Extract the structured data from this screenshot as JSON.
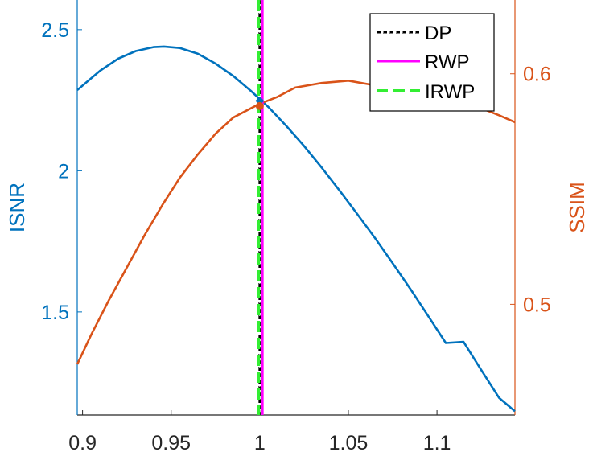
{
  "chart_data": {
    "type": "line",
    "xlim": [
      0.897,
      1.144
    ],
    "x_ticks": [
      0.9,
      0.95,
      1,
      1.05,
      1.1
    ],
    "x_tick_labels": [
      "0.9",
      "0.95",
      "1",
      "1.05",
      "1.1"
    ],
    "y_left": {
      "label": "ISNR",
      "ylim": [
        1.135,
        2.605
      ],
      "ticks": [
        1.5,
        2,
        2.5
      ],
      "tick_labels": [
        "1.5",
        "2",
        "2.5"
      ],
      "color": "#0072BD"
    },
    "y_right": {
      "label": "SSIM",
      "ylim": [
        0.452,
        0.632
      ],
      "ticks": [
        0.5,
        0.6
      ],
      "tick_labels": [
        "0.5",
        "0.6"
      ],
      "color": "#D95319"
    },
    "series": [
      {
        "axis": "left",
        "color": "#0072BD",
        "x": [
          0.897,
          0.91,
          0.92,
          0.93,
          0.94,
          0.946,
          0.955,
          0.965,
          0.975,
          0.985,
          0.995,
          1.005,
          1.015,
          1.025,
          1.035,
          1.045,
          1.055,
          1.065,
          1.075,
          1.085,
          1.095,
          1.105,
          1.115,
          1.125,
          1.135,
          1.144
        ],
        "y": [
          2.286,
          2.355,
          2.397,
          2.424,
          2.438,
          2.44,
          2.435,
          2.415,
          2.38,
          2.336,
          2.283,
          2.225,
          2.159,
          2.088,
          2.011,
          1.93,
          1.847,
          1.762,
          1.673,
          1.581,
          1.486,
          1.39,
          1.394,
          1.294,
          1.196,
          1.148
        ]
      },
      {
        "axis": "right",
        "color": "#D95319",
        "x": [
          0.897,
          0.905,
          0.915,
          0.925,
          0.935,
          0.945,
          0.955,
          0.965,
          0.975,
          0.985,
          0.995,
          1,
          1.01,
          1.02,
          1.035,
          1.05,
          1.065,
          1.08,
          1.095,
          1.11,
          1.125,
          1.135,
          1.144
        ],
        "y": [
          0.474,
          0.487,
          0.502,
          0.516,
          0.53,
          0.543,
          0.555,
          0.565,
          0.574,
          0.581,
          0.585,
          0.587,
          0.59,
          0.594,
          0.596,
          0.597,
          0.595,
          0.593,
          0.591,
          0.588,
          0.585,
          0.582,
          0.579
        ]
      }
    ],
    "markers": [
      {
        "axis": "left",
        "shape": "diamond",
        "x": 1,
        "y": 2.248,
        "color": "#0072BD"
      },
      {
        "axis": "right",
        "shape": "circle",
        "x": 1,
        "y": 0.586,
        "color": "#D95319"
      }
    ],
    "vlines": [
      {
        "name": "DP",
        "x": 1.0,
        "color": "#000000",
        "style": "dash-dot-black"
      },
      {
        "name": "RWP",
        "x": 1.0015,
        "color": "#FF00FF",
        "style": "solid"
      },
      {
        "name": "IRWP",
        "x": 0.9993,
        "color": "#33EE33",
        "style": "dashed"
      }
    ],
    "legend": {
      "placement": "top-right",
      "entries": [
        "DP",
        "RWP",
        "IRWP"
      ]
    }
  }
}
